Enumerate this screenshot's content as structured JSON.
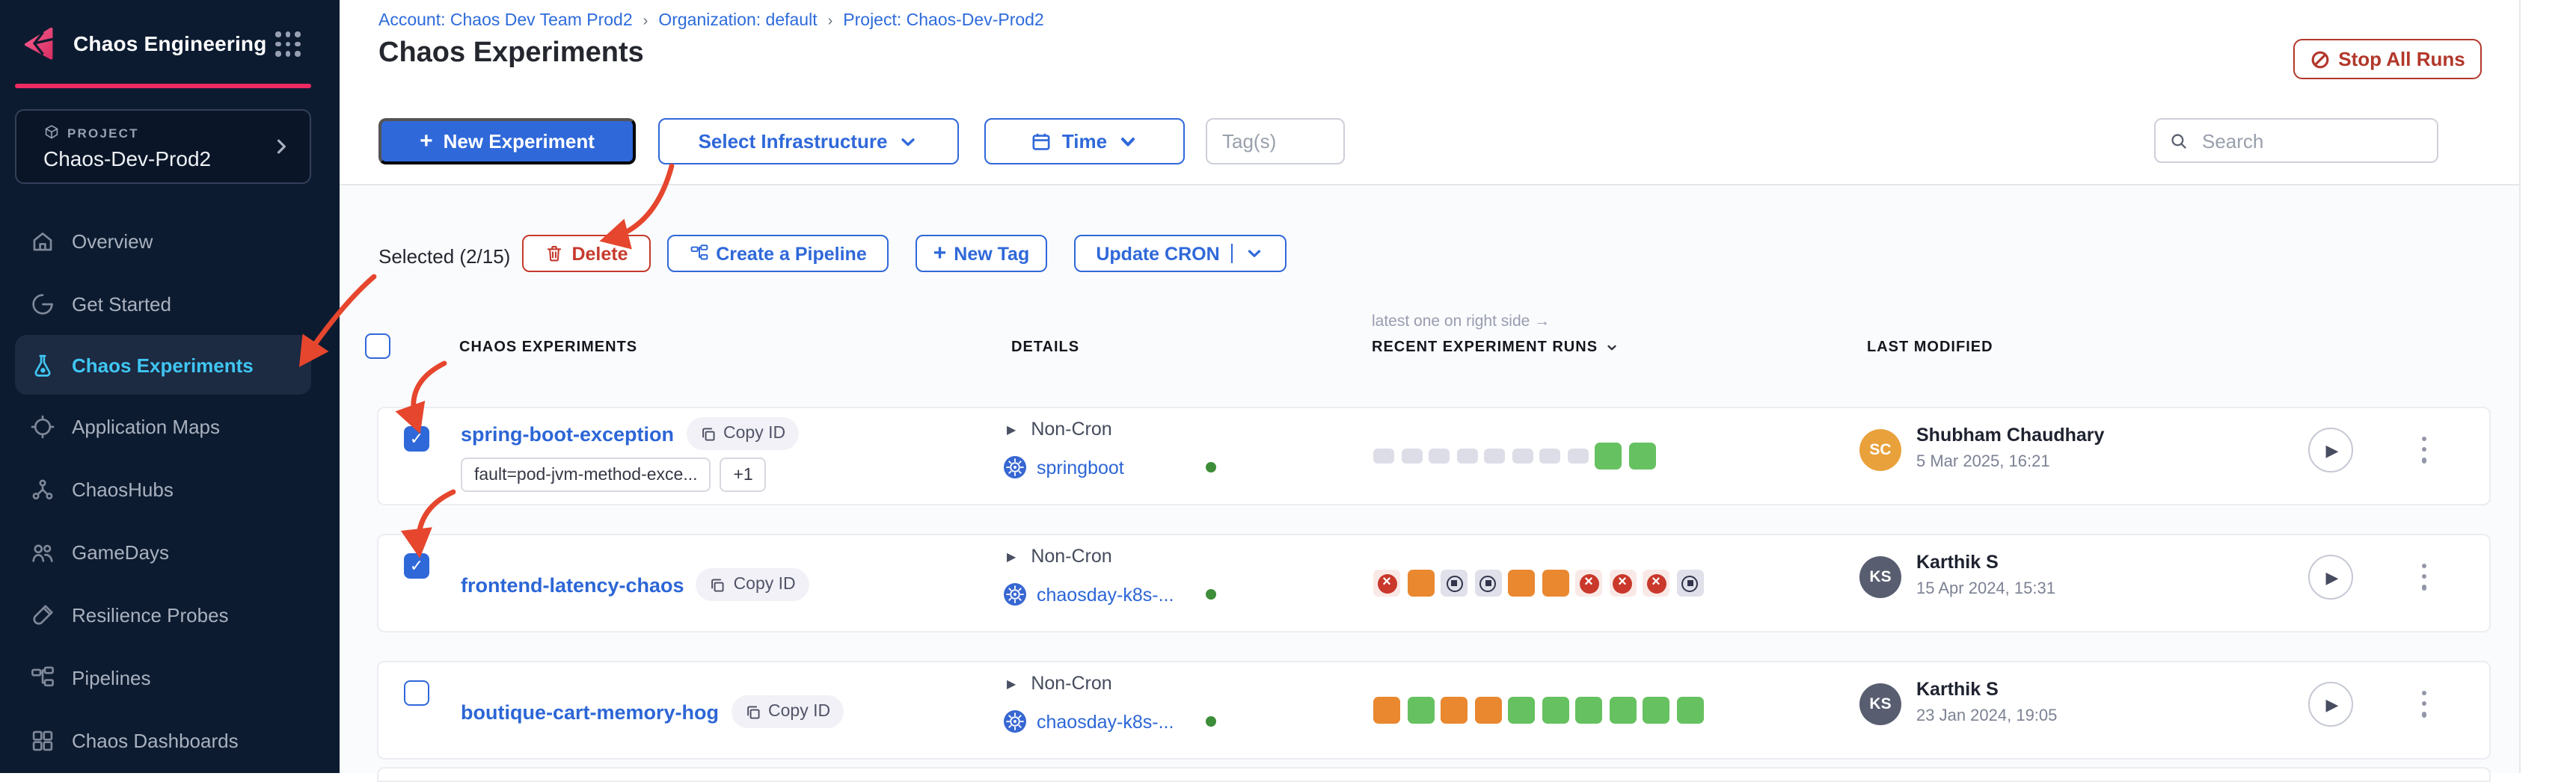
{
  "sidebar": {
    "logo_title": "Chaos Engineering",
    "logo_icon": "chaos-logo-icon",
    "apps_icon": "nine-dot-grid-icon",
    "project_label": "PROJECT",
    "project_name": "Chaos-Dev-Prod2",
    "nav": [
      {
        "id": "overview",
        "label": "Overview",
        "icon": "home-icon",
        "selected": false
      },
      {
        "id": "get-started",
        "label": "Get Started",
        "icon": "get-started-icon",
        "selected": false
      },
      {
        "id": "chaos-experiments",
        "label": "Chaos Experiments",
        "icon": "flask-icon",
        "selected": true
      },
      {
        "id": "application-maps",
        "label": "Application Maps",
        "icon": "target-icon",
        "selected": false
      },
      {
        "id": "chaoshubs",
        "label": "ChaosHubs",
        "icon": "network-icon",
        "selected": false
      },
      {
        "id": "gamedays",
        "label": "GameDays",
        "icon": "people-icon",
        "selected": false
      },
      {
        "id": "resilience-probes",
        "label": "Resilience Probes",
        "icon": "probe-icon",
        "selected": false
      },
      {
        "id": "pipelines",
        "label": "Pipelines",
        "icon": "pipeline-icon",
        "selected": false
      },
      {
        "id": "chaos-dashboards",
        "label": "Chaos Dashboards",
        "icon": "dashboard-icon",
        "selected": false
      }
    ]
  },
  "header": {
    "breadcrumb": [
      {
        "label": "Account: Chaos Dev Team Prod2"
      },
      {
        "label": "Organization: default"
      },
      {
        "label": "Project: Chaos-Dev-Prod2"
      }
    ],
    "title": "Chaos Experiments",
    "stop_all_runs_label": "Stop All Runs",
    "stop_icon": "slash-circle-icon"
  },
  "toolbar": {
    "new_experiment_label": "New Experiment",
    "select_infrastructure_label": "Select Infrastructure",
    "time_label": "Time",
    "time_icon": "calendar-icon",
    "tags_placeholder": "Tag(s)",
    "search_placeholder": "Search",
    "search_icon": "search-icon"
  },
  "selection_bar": {
    "selected_text": "Selected (2/15)",
    "delete_label": "Delete",
    "delete_icon": "trash-icon",
    "create_pipeline_label": "Create a Pipeline",
    "create_pipeline_icon": "pipeline-icon",
    "new_tag_label": "New Tag",
    "update_cron_label": "Update CRON"
  },
  "table": {
    "note": "latest one on right side →",
    "col_experiments": "CHAOS EXPERIMENTS",
    "col_details": "DETAILS",
    "col_runs": "RECENT EXPERIMENT RUNS",
    "col_modified": "LAST MODIFIED",
    "rows": [
      {
        "name": "spring-boot-exception",
        "checked": true,
        "copy_id_label": "Copy ID",
        "tags": [
          "fault=pod-jvm-method-exce...",
          "+1"
        ],
        "cron": "Non-Cron",
        "infra": "springboot",
        "infra_status": "active",
        "runs": [
          "empty",
          "empty",
          "empty",
          "empty",
          "empty",
          "empty",
          "empty",
          "empty",
          "completed",
          "completed"
        ],
        "modified_by": {
          "initials": "SC",
          "name": "Shubham Chaudhary",
          "date": "5 Mar 2025, 16:21",
          "avatar_color": "#E9A13B"
        }
      },
      {
        "name": "frontend-latency-chaos",
        "checked": true,
        "copy_id_label": "Copy ID",
        "tags": [],
        "cron": "Non-Cron",
        "infra": "chaosday-k8s-...",
        "infra_status": "active",
        "runs": [
          "failed",
          "warning",
          "stopped",
          "stopped",
          "warning",
          "warning",
          "failed",
          "failed",
          "failed",
          "stopped"
        ],
        "modified_by": {
          "initials": "KS",
          "name": "Karthik S",
          "date": "15 Apr 2024, 15:31",
          "avatar_color": "#585D70"
        }
      },
      {
        "name": "boutique-cart-memory-hog",
        "checked": false,
        "copy_id_label": "Copy ID",
        "tags": [],
        "cron": "Non-Cron",
        "infra": "chaosday-k8s-...",
        "infra_status": "active",
        "runs": [
          "warning",
          "completed",
          "warning",
          "warning",
          "completed",
          "completed",
          "completed",
          "completed",
          "completed",
          "completed"
        ],
        "modified_by": {
          "initials": "KS",
          "name": "Karthik S",
          "date": "23 Jan 2024, 19:05",
          "avatar_color": "#585D70"
        }
      }
    ]
  },
  "colors": {
    "primary_blue": "#2F68D9",
    "sidebar_bg": "#0C1B30",
    "sidebar_selected_text": "#3FC6F2",
    "brand_pink": "#EE2A63",
    "danger_red": "#B2372B",
    "annotation_red": "#E5462D",
    "run_completed": "#66C160",
    "run_warning": "#E9882F",
    "run_failed": "#C9382B",
    "run_empty": "#DCDDE7",
    "env_active_dot": "#3D8D39"
  }
}
